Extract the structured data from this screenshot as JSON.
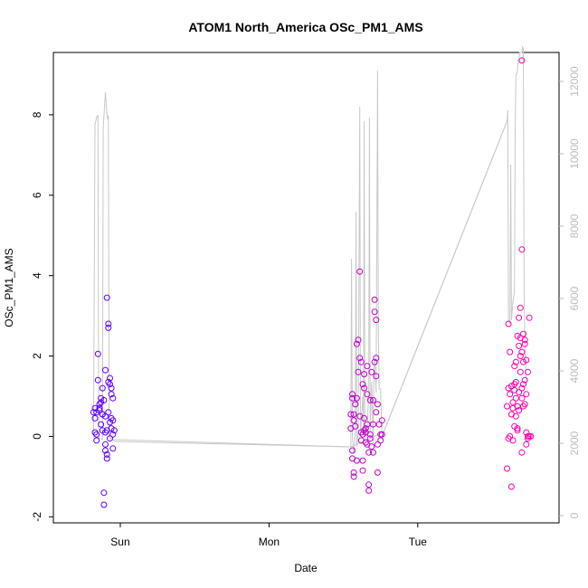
{
  "chart_data": {
    "type": "scatter",
    "title": "ATOM1 North_America OSc_PM1_AMS",
    "xlabel": "Date",
    "ylabel": "OSc_PM1_AMS",
    "x_ticks": [
      "Sun",
      "Mon",
      "Tue"
    ],
    "x_tick_positions_days": [
      1,
      2,
      3
    ],
    "xlim_days": [
      0.55,
      3.95
    ],
    "ylim": [
      -2.15,
      9.55
    ],
    "y_ticks": [
      -2,
      0,
      2,
      4,
      6,
      8
    ],
    "y2lim": [
      -200,
      12800
    ],
    "y2_ticks": [
      0,
      2000,
      4000,
      6000,
      8000,
      10000,
      12000
    ],
    "grid": false,
    "colors": {
      "early": "#5b00ff",
      "late": "#ff00aa",
      "line": "#c8c8c8",
      "axis": "#000000",
      "right_axis": "#bdbdbd"
    },
    "scatter_points": [
      [
        0.82,
        0.6
      ],
      [
        0.83,
        0.45
      ],
      [
        0.83,
        0.7
      ],
      [
        0.84,
        -0.1
      ],
      [
        0.84,
        0.05
      ],
      [
        0.85,
        1.4
      ],
      [
        0.85,
        2.05
      ],
      [
        0.86,
        0.65
      ],
      [
        0.86,
        0.7
      ],
      [
        0.87,
        0.3
      ],
      [
        0.87,
        0.85
      ],
      [
        0.87,
        0.95
      ],
      [
        0.88,
        0.15
      ],
      [
        0.88,
        1.2
      ],
      [
        0.88,
        0.55
      ],
      [
        0.89,
        0.9
      ],
      [
        0.89,
        -1.4
      ],
      [
        0.89,
        -1.7
      ],
      [
        0.9,
        0.5
      ],
      [
        0.9,
        0.1
      ],
      [
        0.9,
        -0.35
      ],
      [
        0.9,
        1.65
      ],
      [
        0.91,
        -0.45
      ],
      [
        0.91,
        -0.55
      ],
      [
        0.91,
        3.45
      ],
      [
        0.92,
        2.8
      ],
      [
        0.92,
        2.7
      ],
      [
        0.92,
        0.6
      ],
      [
        0.92,
        1.35
      ],
      [
        0.93,
        1.45
      ],
      [
        0.93,
        -0.05
      ],
      [
        0.93,
        0.35
      ],
      [
        0.93,
        1.3
      ],
      [
        0.94,
        1.2
      ],
      [
        0.94,
        1.05
      ],
      [
        0.94,
        0.45
      ],
      [
        0.94,
        0.2
      ],
      [
        0.95,
        0.05
      ],
      [
        0.95,
        -0.3
      ],
      [
        0.95,
        0.95
      ],
      [
        0.95,
        0.4
      ],
      [
        0.96,
        0.15
      ],
      [
        0.83,
        0.1
      ],
      [
        0.84,
        0.6
      ],
      [
        0.86,
        0.8
      ],
      [
        0.88,
        0.55
      ],
      [
        0.9,
        -0.2
      ],
      [
        0.91,
        0.15
      ],
      [
        2.55,
        0.55
      ],
      [
        2.55,
        0.2
      ],
      [
        2.56,
        0.95
      ],
      [
        2.56,
        1.05
      ],
      [
        2.56,
        -0.35
      ],
      [
        2.56,
        -0.55
      ],
      [
        2.57,
        -0.9
      ],
      [
        2.57,
        -1.0
      ],
      [
        2.57,
        0.4
      ],
      [
        2.57,
        0.55
      ],
      [
        2.58,
        0.25
      ],
      [
        2.58,
        0.8
      ],
      [
        2.59,
        0.95
      ],
      [
        2.59,
        2.3
      ],
      [
        2.59,
        -0.6
      ],
      [
        2.6,
        2.4
      ],
      [
        2.6,
        1.6
      ],
      [
        2.61,
        4.1
      ],
      [
        2.61,
        1.95
      ],
      [
        2.61,
        0.5
      ],
      [
        2.62,
        0.1
      ],
      [
        2.62,
        -0.1
      ],
      [
        2.62,
        1.85
      ],
      [
        2.63,
        1.3
      ],
      [
        2.63,
        0.05
      ],
      [
        2.63,
        -0.6
      ],
      [
        2.63,
        -0.85
      ],
      [
        2.64,
        1.55
      ],
      [
        2.64,
        1.2
      ],
      [
        2.64,
        0.45
      ],
      [
        2.64,
        0.15
      ],
      [
        2.65,
        0.2
      ],
      [
        2.65,
        0.1
      ],
      [
        2.65,
        -0.15
      ],
      [
        2.66,
        1.75
      ],
      [
        2.66,
        1.05
      ],
      [
        2.66,
        0.3
      ],
      [
        2.66,
        -0.2
      ],
      [
        2.67,
        -0.4
      ],
      [
        2.67,
        -1.2
      ],
      [
        2.67,
        -1.35
      ],
      [
        2.68,
        0.9
      ],
      [
        2.68,
        0.05
      ],
      [
        2.68,
        -0.05
      ],
      [
        2.69,
        1.6
      ],
      [
        2.69,
        -0.25
      ],
      [
        2.7,
        0.9
      ],
      [
        2.7,
        0.3
      ],
      [
        2.7,
        -0.4
      ],
      [
        2.71,
        3.4
      ],
      [
        2.71,
        3.1
      ],
      [
        2.71,
        1.85
      ],
      [
        2.72,
        2.9
      ],
      [
        2.72,
        1.95
      ],
      [
        2.72,
        1.5
      ],
      [
        2.72,
        0.6
      ],
      [
        2.73,
        0.8
      ],
      [
        2.73,
        -0.2
      ],
      [
        2.73,
        -0.9
      ],
      [
        2.74,
        0.3
      ],
      [
        2.75,
        0.05
      ],
      [
        2.75,
        -0.1
      ],
      [
        2.76,
        0.4
      ],
      [
        2.76,
        0.05
      ],
      [
        3.6,
        -0.8
      ],
      [
        3.6,
        0.75
      ],
      [
        3.61,
        2.8
      ],
      [
        3.61,
        1.2
      ],
      [
        3.61,
        -0.05
      ],
      [
        3.62,
        1.05
      ],
      [
        3.62,
        2.1
      ],
      [
        3.62,
        0.0
      ],
      [
        3.63,
        1.25
      ],
      [
        3.63,
        0.55
      ],
      [
        3.63,
        -1.25
      ],
      [
        3.64,
        0.85
      ],
      [
        3.64,
        0.7
      ],
      [
        3.64,
        -0.1
      ],
      [
        3.65,
        1.75
      ],
      [
        3.65,
        1.3
      ],
      [
        3.65,
        1.15
      ],
      [
        3.65,
        0.25
      ],
      [
        3.66,
        1.35
      ],
      [
        3.66,
        0.95
      ],
      [
        3.66,
        0.5
      ],
      [
        3.67,
        0.75
      ],
      [
        3.67,
        0.2
      ],
      [
        3.67,
        0.15
      ],
      [
        3.68,
        2.25
      ],
      [
        3.68,
        1.1
      ],
      [
        3.68,
        0.65
      ],
      [
        3.69,
        3.2
      ],
      [
        3.69,
        2.45
      ],
      [
        3.69,
        2.0
      ],
      [
        3.69,
        1.6
      ],
      [
        3.7,
        4.65
      ],
      [
        3.7,
        2.1
      ],
      [
        3.7,
        1.2
      ],
      [
        3.7,
        0.95
      ],
      [
        3.7,
        -0.4
      ],
      [
        3.71,
        2.55
      ],
      [
        3.71,
        1.85
      ],
      [
        3.71,
        1.3
      ],
      [
        3.71,
        0.75
      ],
      [
        3.72,
        2.3
      ],
      [
        3.72,
        2.4
      ],
      [
        3.72,
        1.4
      ],
      [
        3.72,
        0.8
      ],
      [
        3.73,
        1.9
      ],
      [
        3.73,
        1.05
      ],
      [
        3.73,
        0.1
      ],
      [
        3.73,
        -0.2
      ],
      [
        3.74,
        1.6
      ],
      [
        3.74,
        -0.05
      ],
      [
        3.74,
        0.0
      ],
      [
        3.75,
        2.95
      ],
      [
        3.75,
        0.0
      ],
      [
        3.76,
        0.0
      ],
      [
        3.7,
        9.35
      ],
      [
        3.68,
        2.95
      ],
      [
        3.67,
        2.5
      ],
      [
        3.66,
        1.85
      ]
    ],
    "secondary_line_y2": [
      [
        0.82,
        2150
      ],
      [
        0.83,
        10800
      ],
      [
        0.84,
        11000
      ],
      [
        0.845,
        11050
      ],
      [
        0.85,
        11050
      ],
      [
        0.855,
        2100
      ],
      [
        0.86,
        2150
      ],
      [
        0.88,
        2100
      ],
      [
        0.885,
        10700
      ],
      [
        0.9,
        11700
      ],
      [
        0.91,
        11100
      ],
      [
        0.915,
        10950
      ],
      [
        0.92,
        11050
      ],
      [
        0.925,
        2200
      ],
      [
        0.93,
        2100
      ],
      [
        0.94,
        2150
      ],
      [
        0.95,
        2100
      ],
      [
        0.96,
        2050
      ],
      [
        2.55,
        1900
      ],
      [
        2.555,
        7100
      ],
      [
        2.56,
        2200
      ],
      [
        2.57,
        1700
      ],
      [
        2.58,
        2300
      ],
      [
        2.585,
        8400
      ],
      [
        2.59,
        1900
      ],
      [
        2.6,
        2300
      ],
      [
        2.61,
        11300
      ],
      [
        2.615,
        2200
      ],
      [
        2.62,
        2500
      ],
      [
        2.63,
        3300
      ],
      [
        2.635,
        2400
      ],
      [
        2.64,
        10900
      ],
      [
        2.645,
        2100
      ],
      [
        2.65,
        2500
      ],
      [
        2.66,
        2200
      ],
      [
        2.665,
        2900
      ],
      [
        2.67,
        3300
      ],
      [
        2.675,
        11000
      ],
      [
        2.68,
        2300
      ],
      [
        2.69,
        3700
      ],
      [
        2.7,
        2000
      ],
      [
        2.705,
        4200
      ],
      [
        2.71,
        4300
      ],
      [
        2.72,
        3400
      ],
      [
        2.73,
        12300
      ],
      [
        2.735,
        5300
      ],
      [
        2.74,
        3500
      ],
      [
        2.75,
        3500
      ],
      [
        2.755,
        2800
      ],
      [
        2.76,
        2100
      ],
      [
        2.77,
        2300
      ],
      [
        3.6,
        10900
      ],
      [
        3.605,
        11200
      ],
      [
        3.61,
        5400
      ],
      [
        3.62,
        5300
      ],
      [
        3.625,
        9700
      ],
      [
        3.63,
        5400
      ],
      [
        3.64,
        5900
      ],
      [
        3.65,
        6200
      ],
      [
        3.655,
        10600
      ],
      [
        3.66,
        12200
      ],
      [
        3.665,
        12200
      ],
      [
        3.67,
        12300
      ],
      [
        3.675,
        12600
      ],
      [
        3.68,
        12550
      ],
      [
        3.685,
        12800
      ],
      [
        3.7,
        12800
      ],
      [
        3.705,
        12950
      ],
      [
        3.71,
        12900
      ],
      [
        3.715,
        6100
      ],
      [
        3.72,
        5000
      ],
      [
        3.73,
        3600
      ]
    ],
    "secondary_line_connections": [
      [
        0.96,
        2100
      ],
      [
        2.55,
        1900
      ],
      [
        2.77,
        2300
      ],
      [
        3.6,
        10900
      ]
    ]
  }
}
